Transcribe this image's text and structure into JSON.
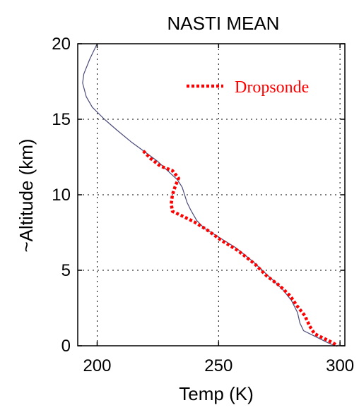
{
  "chart_data": {
    "type": "line",
    "title": "NASTI MEAN",
    "xlabel": "Temp (K)",
    "ylabel": "~Altitude (km)",
    "xlim": [
      192,
      302
    ],
    "ylim": [
      0,
      20
    ],
    "xticks": [
      200,
      250,
      300
    ],
    "yticks": [
      0,
      5,
      10,
      15,
      20
    ],
    "xtick_labels": [
      "200",
      "250",
      "300"
    ],
    "ytick_labels": [
      "0",
      "5",
      "10",
      "15",
      "20"
    ],
    "grid": true,
    "legend_position": "top-right",
    "series": [
      {
        "name": "",
        "style": "solid",
        "color": "#4a4a7a",
        "points": [
          [
            200,
            20.0
          ],
          [
            197,
            19.0
          ],
          [
            194.5,
            18.0
          ],
          [
            194,
            17.4
          ],
          [
            195.5,
            16.5
          ],
          [
            198,
            15.8
          ],
          [
            203,
            15.0
          ],
          [
            208,
            14.3
          ],
          [
            214,
            13.5
          ],
          [
            220,
            12.8
          ],
          [
            225,
            12.2
          ],
          [
            229,
            11.6
          ],
          [
            233,
            11.0
          ],
          [
            235,
            10.5
          ],
          [
            236,
            10.0
          ],
          [
            237,
            9.5
          ],
          [
            238.5,
            9.0
          ],
          [
            241,
            8.3
          ],
          [
            244,
            7.8
          ],
          [
            250,
            7.2
          ],
          [
            257,
            6.5
          ],
          [
            264,
            5.6
          ],
          [
            270,
            4.7
          ],
          [
            276,
            3.8
          ],
          [
            280,
            3.0
          ],
          [
            282.5,
            2.2
          ],
          [
            283.5,
            1.5
          ],
          [
            285,
            1.0
          ],
          [
            290,
            0.6
          ],
          [
            295,
            0.2
          ],
          [
            298,
            0.0
          ]
        ]
      },
      {
        "name": "Dropsonde",
        "style": "dotted",
        "color": "#ff0000",
        "points": [
          [
            219,
            12.9
          ],
          [
            222,
            12.4
          ],
          [
            226,
            11.9
          ],
          [
            231,
            11.6
          ],
          [
            233.5,
            11.1
          ],
          [
            232,
            10.5
          ],
          [
            231,
            10.0
          ],
          [
            230.5,
            9.4
          ],
          [
            231,
            8.9
          ],
          [
            235,
            8.6
          ],
          [
            240,
            8.2
          ],
          [
            245,
            7.7
          ],
          [
            251,
            7.0
          ],
          [
            258,
            6.3
          ],
          [
            265,
            5.4
          ],
          [
            270,
            4.6
          ],
          [
            275,
            4.0
          ],
          [
            279.5,
            3.3
          ],
          [
            282.5,
            2.6
          ],
          [
            285.5,
            2.0
          ],
          [
            287.5,
            1.3
          ],
          [
            289.5,
            0.8
          ],
          [
            292,
            0.6
          ],
          [
            297,
            0.2
          ],
          [
            299,
            0.0
          ]
        ]
      }
    ]
  }
}
